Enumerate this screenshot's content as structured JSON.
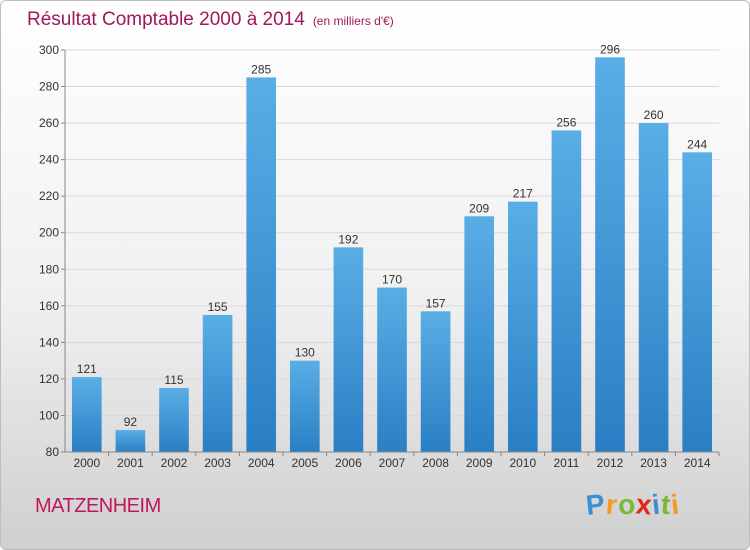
{
  "header": {
    "title": "Résultat Comptable 2000 à 2014",
    "unit": "(en milliers d'€)"
  },
  "footer": {
    "commune": "MATZENHEIM",
    "brand_letters": [
      "P",
      "r",
      "o",
      "x",
      "i",
      "t",
      "i"
    ],
    "brand_colors": [
      "#3a8fd0",
      "#f29a1e",
      "#7bb734",
      "#e2261c",
      "#3a8fd0",
      "#7bb734",
      "#f29a1e"
    ]
  },
  "chart_data": {
    "type": "bar",
    "title": "Résultat Comptable 2000 à 2014",
    "categories": [
      "2000",
      "2001",
      "2002",
      "2003",
      "2004",
      "2005",
      "2006",
      "2007",
      "2008",
      "2009",
      "2010",
      "2011",
      "2012",
      "2013",
      "2014"
    ],
    "values": [
      121,
      92,
      115,
      155,
      285,
      130,
      192,
      170,
      157,
      209,
      217,
      256,
      296,
      260,
      244
    ],
    "ylim": [
      80,
      300
    ],
    "yticks": [
      80,
      100,
      120,
      140,
      160,
      180,
      200,
      220,
      240,
      260,
      280,
      300
    ],
    "grid": true,
    "bar_color_top": "#5aaee6",
    "bar_color_bottom": "#2a7fc4"
  }
}
